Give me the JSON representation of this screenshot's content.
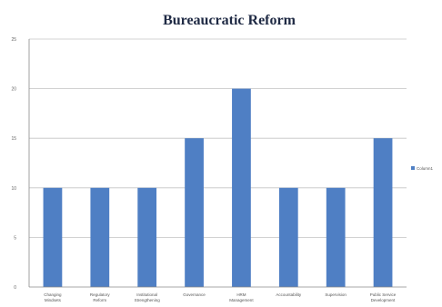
{
  "chart_data": {
    "type": "bar",
    "title": "Bureaucratic Reform",
    "categories": [
      "Changing Mindsets",
      "Regulatory Reform",
      "Institutional Strengthening",
      "Governance",
      "HRM Management",
      "Accountability",
      "Supervision",
      "Public Service Development"
    ],
    "series": [
      {
        "name": "Column1",
        "values": [
          10,
          10,
          10,
          15,
          20,
          10,
          10,
          15
        ],
        "color": "#4f7fc4"
      }
    ],
    "ylim": [
      0,
      25
    ],
    "yticks": [
      "0",
      "5",
      "10",
      "15",
      "20",
      "25"
    ],
    "xlabel": "",
    "ylabel": "",
    "grid": true,
    "legend_position": "right"
  }
}
